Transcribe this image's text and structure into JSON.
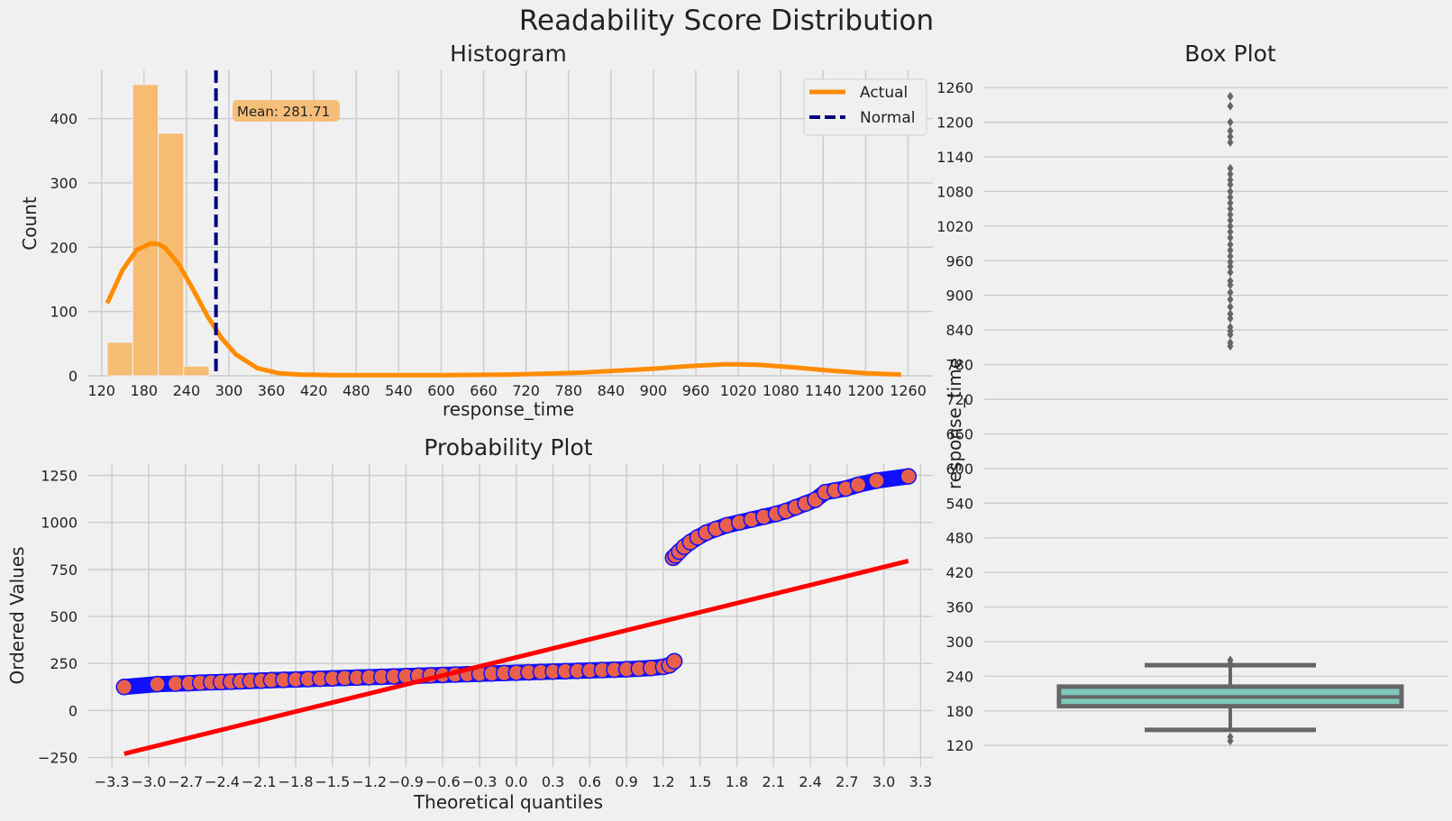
{
  "figure": {
    "suptitle": "Readability Score Distribution"
  },
  "colors": {
    "background": "#f0f0f0",
    "hist_bar": "#f6bc72",
    "kde_line": "#ff8c00",
    "mean_line": "#000080",
    "prob_point": "#e8604c",
    "prob_edge": "#1010ff",
    "fit_line": "#ff0000",
    "box_face": "#80c9ba",
    "box_edge": "#666666"
  },
  "chart_data": [
    {
      "type": "bar",
      "panel": "histogram",
      "title": "Histogram",
      "xlabel": "response_time",
      "ylabel": "Count",
      "xlim": [
        100,
        1295
      ],
      "ylim": [
        0,
        475
      ],
      "xticks": [
        120,
        180,
        240,
        300,
        360,
        420,
        480,
        540,
        600,
        660,
        720,
        780,
        840,
        900,
        960,
        1020,
        1080,
        1140,
        1200,
        1260
      ],
      "yticks": [
        0,
        100,
        200,
        300,
        400
      ],
      "bin_edges": [
        128,
        164,
        200,
        236,
        272
      ],
      "counts": [
        52,
        453,
        377,
        15
      ],
      "kde": {
        "name": "Actual",
        "x": [
          128,
          150,
          170,
          190,
          200,
          210,
          230,
          250,
          270,
          290,
          310,
          340,
          370,
          400,
          450,
          500,
          600,
          700,
          800,
          850,
          900,
          950,
          1000,
          1020,
          1050,
          1100,
          1150,
          1200,
          1250
        ],
        "y": [
          113,
          165,
          196,
          206,
          205,
          199,
          172,
          133,
          92,
          58,
          33,
          12,
          4,
          2,
          1,
          1,
          1,
          2,
          5,
          8,
          11,
          15,
          18,
          18,
          17,
          13,
          8,
          4,
          2
        ]
      },
      "mean": {
        "value": 281.71,
        "label": "Mean: 281.71",
        "name": "Normal"
      },
      "legend": {
        "placement": "upper right",
        "entries": [
          "Actual",
          "Normal"
        ]
      },
      "grid": true
    },
    {
      "type": "scatter",
      "panel": "probability",
      "title": "Probability Plot",
      "xlabel": "Theoretical quantiles",
      "ylabel": "Ordered Values",
      "xlim": [
        -3.5,
        3.4
      ],
      "ylim": [
        -300,
        1310
      ],
      "xticks": [
        "−3.3",
        "−3.0",
        "−2.7",
        "−2.4",
        "−2.1",
        "−1.8",
        "−1.5",
        "−1.2",
        "−0.9",
        "−0.6",
        "−0.3",
        "0.0",
        "0.3",
        "0.6",
        "0.9",
        "1.2",
        "1.5",
        "1.8",
        "2.1",
        "2.4",
        "2.7",
        "3.0",
        "3.3"
      ],
      "yticks": [
        "−250",
        "0",
        "250",
        "500",
        "750",
        "1000",
        "1250"
      ],
      "points_lower": [
        [
          -3.2,
          125
        ],
        [
          -2.93,
          140
        ],
        [
          -2.78,
          143
        ],
        [
          -2.67,
          145
        ],
        [
          -2.58,
          148
        ],
        [
          -2.49,
          150
        ],
        [
          -2.41,
          151
        ],
        [
          -2.33,
          153
        ],
        [
          -2.25,
          155
        ],
        [
          -2.17,
          157
        ],
        [
          -2.08,
          159
        ],
        [
          -2.0,
          161
        ],
        [
          -1.9,
          163
        ],
        [
          -1.8,
          165
        ],
        [
          -1.7,
          167
        ],
        [
          -1.6,
          169
        ],
        [
          -1.5,
          171
        ],
        [
          -1.4,
          173
        ],
        [
          -1.3,
          175
        ],
        [
          -1.2,
          177
        ],
        [
          -1.1,
          179
        ],
        [
          -1.0,
          181
        ],
        [
          -0.9,
          183
        ],
        [
          -0.8,
          185
        ],
        [
          -0.7,
          187
        ],
        [
          -0.6,
          189
        ],
        [
          -0.5,
          191
        ],
        [
          -0.4,
          193
        ],
        [
          -0.3,
          195
        ],
        [
          -0.2,
          197
        ],
        [
          -0.1,
          199
        ],
        [
          0.0,
          201
        ],
        [
          0.1,
          203
        ],
        [
          0.2,
          205
        ],
        [
          0.3,
          207
        ],
        [
          0.4,
          209
        ],
        [
          0.5,
          211
        ],
        [
          0.6,
          213
        ],
        [
          0.7,
          215
        ],
        [
          0.8,
          217
        ],
        [
          0.9,
          219
        ],
        [
          1.0,
          222
        ],
        [
          1.1,
          226
        ],
        [
          1.2,
          232
        ],
        [
          1.25,
          240
        ],
        [
          1.29,
          262
        ]
      ],
      "points_upper": [
        [
          1.28,
          812
        ],
        [
          1.3,
          825
        ],
        [
          1.33,
          845
        ],
        [
          1.37,
          870
        ],
        [
          1.42,
          895
        ],
        [
          1.48,
          920
        ],
        [
          1.55,
          945
        ],
        [
          1.63,
          965
        ],
        [
          1.72,
          985
        ],
        [
          1.82,
          1000
        ],
        [
          1.92,
          1015
        ],
        [
          2.02,
          1030
        ],
        [
          2.12,
          1045
        ],
        [
          2.2,
          1060
        ],
        [
          2.28,
          1080
        ],
        [
          2.36,
          1100
        ],
        [
          2.44,
          1120
        ],
        [
          2.52,
          1160
        ],
        [
          2.6,
          1170
        ],
        [
          2.69,
          1180
        ],
        [
          2.79,
          1200
        ],
        [
          2.94,
          1222
        ],
        [
          3.2,
          1245
        ]
      ],
      "fit_line": {
        "x": [
          -3.2,
          3.2
        ],
        "y": [
          -230,
          795
        ]
      },
      "grid": true
    },
    {
      "type": "box",
      "panel": "boxplot",
      "title": "Box Plot",
      "ylabel": "response_time",
      "ylim": [
        100,
        1290
      ],
      "yticks": [
        120,
        180,
        240,
        300,
        360,
        420,
        480,
        540,
        600,
        660,
        720,
        780,
        840,
        900,
        960,
        1020,
        1080,
        1140,
        1200,
        1260
      ],
      "q1": 188,
      "median": 204,
      "q3": 222,
      "whisker_low": 147,
      "whisker_high": 259,
      "outliers": [
        128,
        135,
        262,
        268,
        812,
        818,
        832,
        838,
        845,
        860,
        868,
        880,
        893,
        905,
        918,
        925,
        940,
        950,
        958,
        968,
        978,
        988,
        1000,
        1010,
        1020,
        1030,
        1040,
        1050,
        1060,
        1070,
        1080,
        1092,
        1100,
        1110,
        1120,
        1165,
        1175,
        1185,
        1200,
        1228,
        1245
      ],
      "grid": true
    }
  ]
}
